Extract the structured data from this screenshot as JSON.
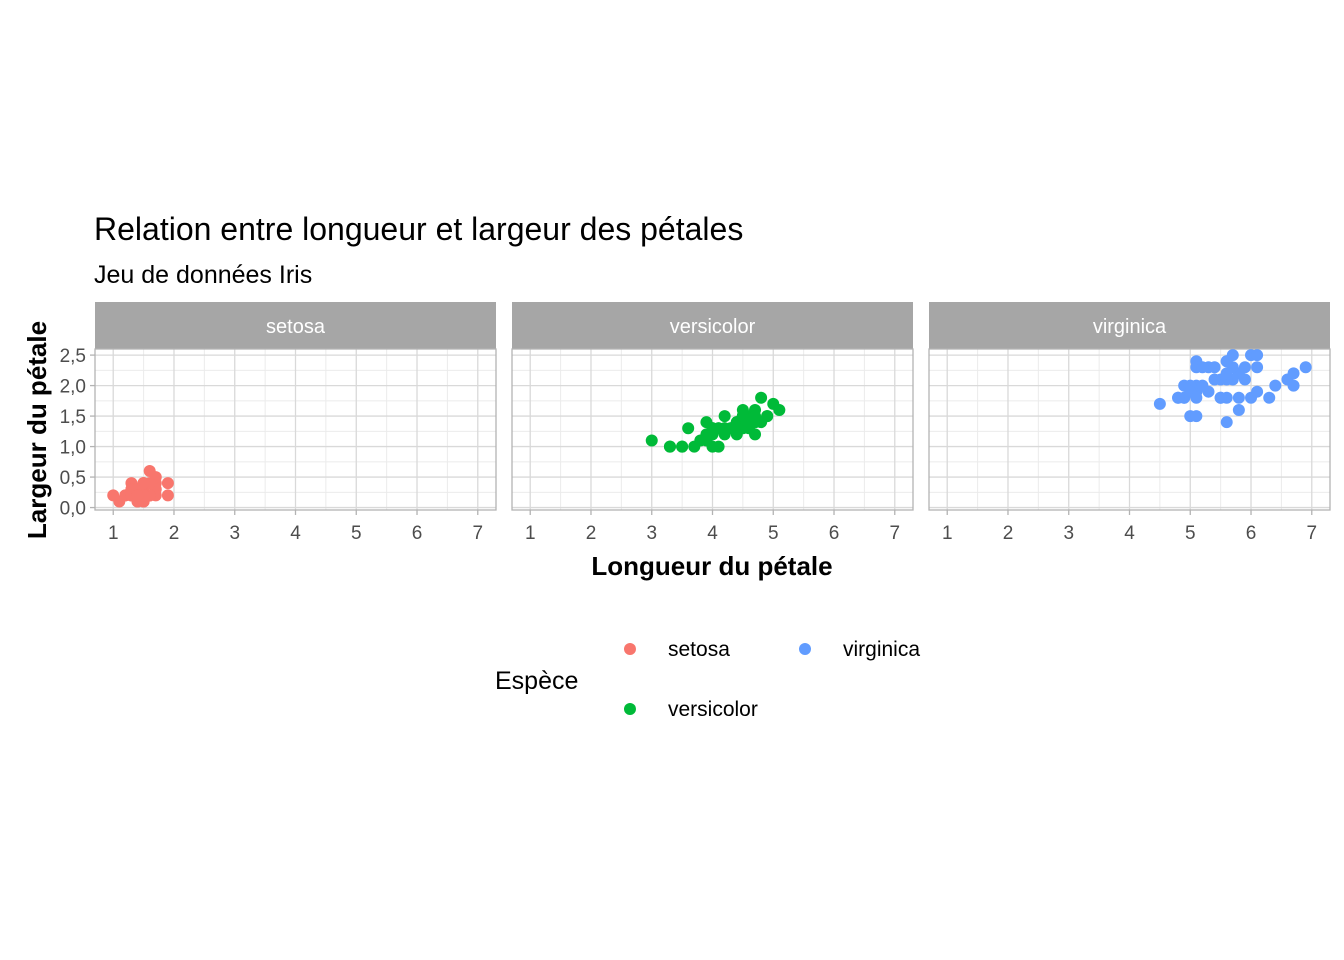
{
  "chart_data": {
    "type": "scatter",
    "title": "Relation entre longueur et largeur des pétales",
    "subtitle": "Jeu de données Iris",
    "xlabel": "Longueur du pétale",
    "ylabel": "Largeur du pétale",
    "xlim": [
      0.7,
      7.3
    ],
    "ylim": [
      -0.04,
      2.6
    ],
    "x_ticks": [
      1,
      2,
      3,
      4,
      5,
      6,
      7
    ],
    "y_ticks": [
      0,
      0.5,
      1,
      1.5,
      2,
      2.5
    ],
    "y_tick_labels": [
      "0,0",
      "0,5",
      "1,0",
      "1,5",
      "2,0",
      "2,5"
    ],
    "grid": true,
    "facets": [
      "setosa",
      "versicolor",
      "virginica"
    ],
    "legend": {
      "title": "Espèce",
      "position": "bottom",
      "entries": [
        {
          "name": "setosa",
          "color": "#F8766D"
        },
        {
          "name": "versicolor",
          "color": "#00BA38"
        },
        {
          "name": "virginica",
          "color": "#619CFF"
        }
      ]
    },
    "series": [
      {
        "name": "setosa",
        "color": "#F8766D",
        "points": [
          [
            1.4,
            0.2
          ],
          [
            1.4,
            0.2
          ],
          [
            1.3,
            0.2
          ],
          [
            1.5,
            0.2
          ],
          [
            1.4,
            0.2
          ],
          [
            1.7,
            0.4
          ],
          [
            1.4,
            0.3
          ],
          [
            1.5,
            0.2
          ],
          [
            1.4,
            0.2
          ],
          [
            1.5,
            0.1
          ],
          [
            1.5,
            0.2
          ],
          [
            1.6,
            0.2
          ],
          [
            1.4,
            0.1
          ],
          [
            1.1,
            0.1
          ],
          [
            1.2,
            0.2
          ],
          [
            1.5,
            0.4
          ],
          [
            1.3,
            0.4
          ],
          [
            1.4,
            0.3
          ],
          [
            1.7,
            0.3
          ],
          [
            1.5,
            0.3
          ],
          [
            1.7,
            0.2
          ],
          [
            1.5,
            0.4
          ],
          [
            1.0,
            0.2
          ],
          [
            1.7,
            0.5
          ],
          [
            1.9,
            0.2
          ],
          [
            1.6,
            0.2
          ],
          [
            1.6,
            0.4
          ],
          [
            1.5,
            0.2
          ],
          [
            1.4,
            0.2
          ],
          [
            1.6,
            0.2
          ],
          [
            1.6,
            0.2
          ],
          [
            1.5,
            0.4
          ],
          [
            1.5,
            0.1
          ],
          [
            1.4,
            0.2
          ],
          [
            1.5,
            0.2
          ],
          [
            1.2,
            0.2
          ],
          [
            1.3,
            0.2
          ],
          [
            1.4,
            0.1
          ],
          [
            1.3,
            0.2
          ],
          [
            1.5,
            0.2
          ],
          [
            1.3,
            0.3
          ],
          [
            1.3,
            0.3
          ],
          [
            1.3,
            0.2
          ],
          [
            1.6,
            0.6
          ],
          [
            1.9,
            0.4
          ],
          [
            1.4,
            0.3
          ],
          [
            1.6,
            0.2
          ],
          [
            1.4,
            0.2
          ],
          [
            1.5,
            0.2
          ],
          [
            1.4,
            0.2
          ]
        ]
      },
      {
        "name": "versicolor",
        "color": "#00BA38",
        "points": [
          [
            4.7,
            1.4
          ],
          [
            4.5,
            1.5
          ],
          [
            4.9,
            1.5
          ],
          [
            4.0,
            1.3
          ],
          [
            4.6,
            1.5
          ],
          [
            4.5,
            1.3
          ],
          [
            4.7,
            1.6
          ],
          [
            3.3,
            1.0
          ],
          [
            4.6,
            1.3
          ],
          [
            3.9,
            1.4
          ],
          [
            3.5,
            1.0
          ],
          [
            4.2,
            1.5
          ],
          [
            4.0,
            1.0
          ],
          [
            4.7,
            1.4
          ],
          [
            3.6,
            1.3
          ],
          [
            4.4,
            1.4
          ],
          [
            4.5,
            1.5
          ],
          [
            4.1,
            1.0
          ],
          [
            4.5,
            1.5
          ],
          [
            3.9,
            1.1
          ],
          [
            4.8,
            1.8
          ],
          [
            4.0,
            1.3
          ],
          [
            4.9,
            1.5
          ],
          [
            4.7,
            1.2
          ],
          [
            4.3,
            1.3
          ],
          [
            4.4,
            1.4
          ],
          [
            4.8,
            1.4
          ],
          [
            5.0,
            1.7
          ],
          [
            4.5,
            1.5
          ],
          [
            3.5,
            1.0
          ],
          [
            3.8,
            1.1
          ],
          [
            3.7,
            1.0
          ],
          [
            3.9,
            1.2
          ],
          [
            5.1,
            1.6
          ],
          [
            4.5,
            1.5
          ],
          [
            4.5,
            1.6
          ],
          [
            4.7,
            1.5
          ],
          [
            4.4,
            1.3
          ],
          [
            4.1,
            1.3
          ],
          [
            4.0,
            1.3
          ],
          [
            4.4,
            1.2
          ],
          [
            4.6,
            1.4
          ],
          [
            4.0,
            1.2
          ],
          [
            3.3,
            1.0
          ],
          [
            4.2,
            1.3
          ],
          [
            4.2,
            1.2
          ],
          [
            4.2,
            1.3
          ],
          [
            4.3,
            1.3
          ],
          [
            3.0,
            1.1
          ],
          [
            4.1,
            1.3
          ]
        ]
      },
      {
        "name": "virginica",
        "color": "#619CFF",
        "points": [
          [
            6.0,
            2.5
          ],
          [
            5.1,
            1.9
          ],
          [
            5.9,
            2.1
          ],
          [
            5.6,
            1.8
          ],
          [
            5.8,
            2.2
          ],
          [
            6.6,
            2.1
          ],
          [
            4.5,
            1.7
          ],
          [
            6.3,
            1.8
          ],
          [
            5.8,
            1.8
          ],
          [
            6.1,
            2.5
          ],
          [
            5.1,
            2.0
          ],
          [
            5.3,
            1.9
          ],
          [
            5.5,
            2.1
          ],
          [
            5.0,
            2.0
          ],
          [
            5.1,
            2.4
          ],
          [
            5.3,
            2.3
          ],
          [
            5.5,
            1.8
          ],
          [
            6.7,
            2.2
          ],
          [
            6.9,
            2.3
          ],
          [
            5.0,
            1.5
          ],
          [
            5.7,
            2.3
          ],
          [
            4.9,
            2.0
          ],
          [
            6.7,
            2.0
          ],
          [
            4.9,
            1.8
          ],
          [
            5.7,
            2.1
          ],
          [
            6.0,
            1.8
          ],
          [
            4.8,
            1.8
          ],
          [
            4.9,
            1.8
          ],
          [
            5.6,
            2.1
          ],
          [
            5.8,
            1.6
          ],
          [
            6.1,
            1.9
          ],
          [
            6.4,
            2.0
          ],
          [
            5.6,
            2.2
          ],
          [
            5.1,
            1.5
          ],
          [
            5.6,
            1.4
          ],
          [
            6.1,
            2.3
          ],
          [
            5.6,
            2.4
          ],
          [
            5.5,
            1.8
          ],
          [
            4.8,
            1.8
          ],
          [
            5.4,
            2.1
          ],
          [
            5.6,
            2.4
          ],
          [
            5.1,
            2.3
          ],
          [
            5.1,
            1.9
          ],
          [
            5.9,
            2.3
          ],
          [
            5.7,
            2.5
          ],
          [
            5.2,
            2.3
          ],
          [
            5.0,
            1.9
          ],
          [
            5.2,
            2.0
          ],
          [
            5.4,
            2.3
          ],
          [
            5.1,
            1.8
          ]
        ]
      }
    ]
  }
}
